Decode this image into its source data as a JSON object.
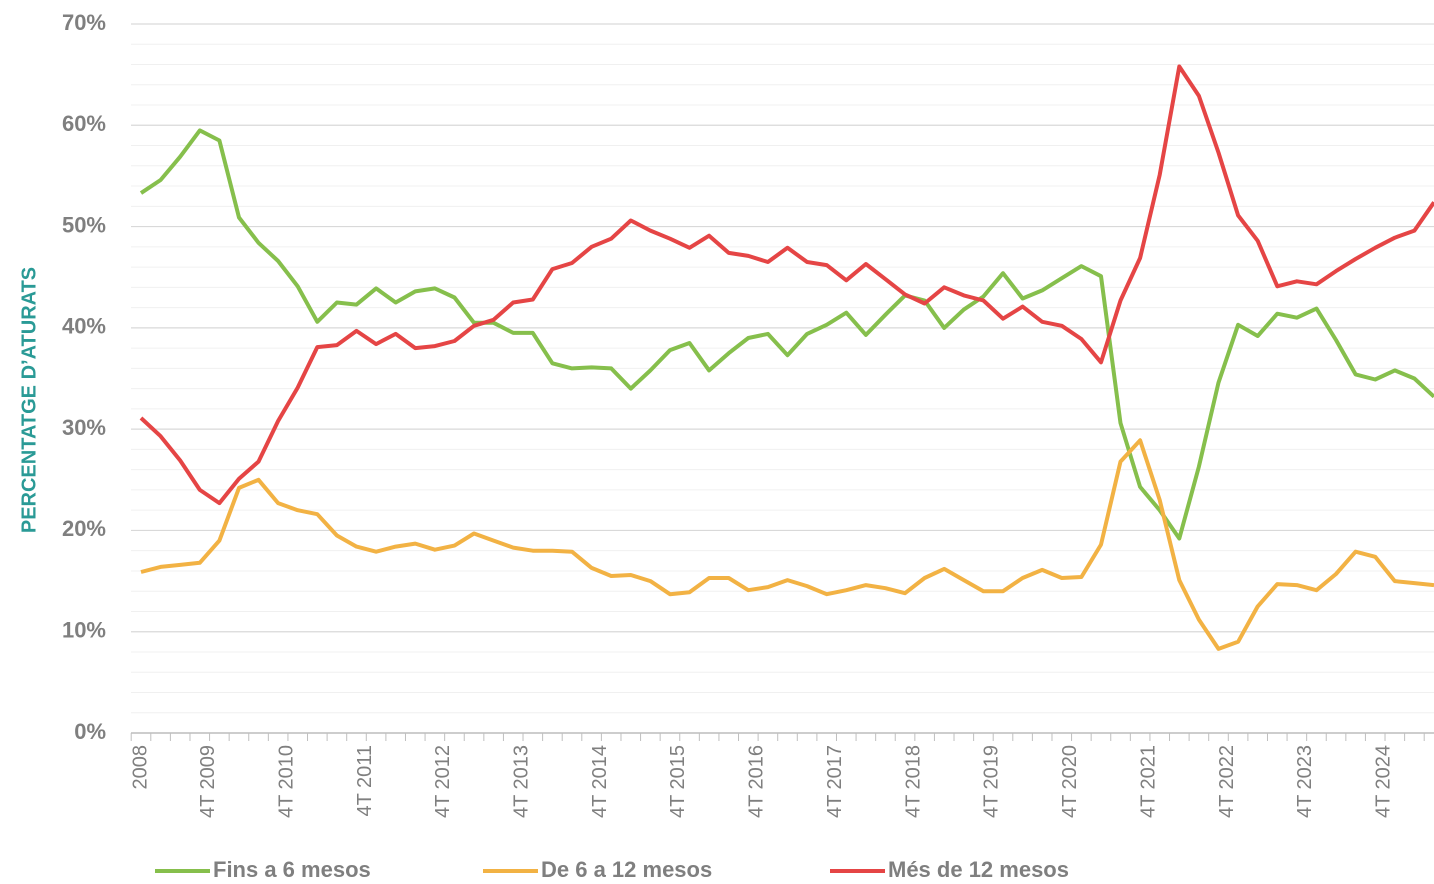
{
  "chart_data": {
    "type": "line",
    "y_label": "PERCENTATGE D’ATURATS",
    "categories": [
      "2008",
      null,
      null,
      "4T 2009",
      null,
      null,
      null,
      "4T 2010",
      null,
      null,
      null,
      "4T 2011",
      null,
      null,
      null,
      "4T 2012",
      null,
      null,
      null,
      "4T 2013",
      null,
      null,
      null,
      "4T 2014",
      null,
      null,
      null,
      "4T 2015",
      null,
      null,
      null,
      "4T 2016",
      null,
      null,
      null,
      "4T 2017",
      null,
      null,
      null,
      "4T 2018",
      null,
      null,
      null,
      "4T 2019",
      null,
      null,
      null,
      "4T 2020",
      null,
      null,
      null,
      "4T 2021",
      null,
      null,
      null,
      "4T 2022",
      null,
      null,
      null,
      "4T 2023",
      null,
      null,
      null,
      "4T 2024",
      null,
      null,
      null
    ],
    "series": [
      {
        "name": "Fins a 6 mesos",
        "color": "#86bf4c",
        "values": [
          53.3,
          54.6,
          56.9,
          59.5,
          58.5,
          50.9,
          48.4,
          46.6,
          44.1,
          40.6,
          42.5,
          42.3,
          43.9,
          42.5,
          43.6,
          43.9,
          43.0,
          40.5,
          40.5,
          39.5,
          39.5,
          36.5,
          36.0,
          36.1,
          36.0,
          34.0,
          35.8,
          37.8,
          38.5,
          35.8,
          37.5,
          39.0,
          39.4,
          37.3,
          39.4,
          40.3,
          41.5,
          39.3,
          41.3,
          43.2,
          42.7,
          40.0,
          41.8,
          43.1,
          45.4,
          42.9,
          43.7,
          44.9,
          46.1,
          45.1,
          30.6,
          24.3,
          22.0,
          19.2,
          26.3,
          34.6,
          40.3,
          39.2,
          41.4,
          41.0,
          41.9,
          38.8,
          35.4,
          34.9,
          35.8,
          35.0,
          33.2
        ]
      },
      {
        "name": "De 6 a 12 mesos",
        "color": "#f2b244",
        "values": [
          15.9,
          16.4,
          16.6,
          16.8,
          19.0,
          24.2,
          25.0,
          22.7,
          22.0,
          21.6,
          19.5,
          18.4,
          17.9,
          18.4,
          18.7,
          18.1,
          18.5,
          19.7,
          19.0,
          18.3,
          18.0,
          18.0,
          17.9,
          16.3,
          15.5,
          15.6,
          15.0,
          13.7,
          13.9,
          15.3,
          15.3,
          14.1,
          14.4,
          15.1,
          14.5,
          13.7,
          14.1,
          14.6,
          14.3,
          13.8,
          15.3,
          16.2,
          15.1,
          14.0,
          14.0,
          15.3,
          16.1,
          15.3,
          15.4,
          18.6,
          26.8,
          28.9,
          23.0,
          15.1,
          11.2,
          8.3,
          9.0,
          12.5,
          14.7,
          14.6,
          14.1,
          15.7,
          17.9,
          17.4,
          15.0,
          14.8,
          14.6
        ]
      },
      {
        "name": "Més de 12 mesos",
        "color": "#e54545",
        "values": [
          31.1,
          29.3,
          26.9,
          24.0,
          22.7,
          25.1,
          26.8,
          30.8,
          34.1,
          38.1,
          38.3,
          39.7,
          38.4,
          39.4,
          38.0,
          38.2,
          38.7,
          40.2,
          40.8,
          42.5,
          42.8,
          45.8,
          46.4,
          48.0,
          48.8,
          50.6,
          49.6,
          48.8,
          47.9,
          49.1,
          47.4,
          47.1,
          46.5,
          47.9,
          46.5,
          46.2,
          44.7,
          46.3,
          44.8,
          43.3,
          42.4,
          44.0,
          43.2,
          42.7,
          40.9,
          42.1,
          40.6,
          40.2,
          38.9,
          36.6,
          42.7,
          46.9,
          55.1,
          65.8,
          62.9,
          57.3,
          51.1,
          48.6,
          44.1,
          44.6,
          44.3,
          45.6,
          46.8,
          47.9,
          48.9,
          49.6,
          52.4
        ]
      }
    ],
    "ylim": [
      0,
      70
    ],
    "yticks": [
      {
        "value": 0,
        "label": "0%"
      },
      {
        "value": 10,
        "label": "10%"
      },
      {
        "value": 20,
        "label": "20%"
      },
      {
        "value": 30,
        "label": "30%"
      },
      {
        "value": 40,
        "label": "40%"
      },
      {
        "value": 50,
        "label": "50%"
      },
      {
        "value": 60,
        "label": "60%"
      },
      {
        "value": 70,
        "label": "70%"
      }
    ],
    "minor_yticks": [
      2,
      4,
      6,
      8,
      12,
      14,
      16,
      18,
      22,
      24,
      26,
      28,
      32,
      34,
      36,
      38,
      42,
      44,
      46,
      48,
      52,
      54,
      56,
      58,
      62,
      64,
      66,
      68
    ],
    "grid": true,
    "legend": "bottom"
  }
}
